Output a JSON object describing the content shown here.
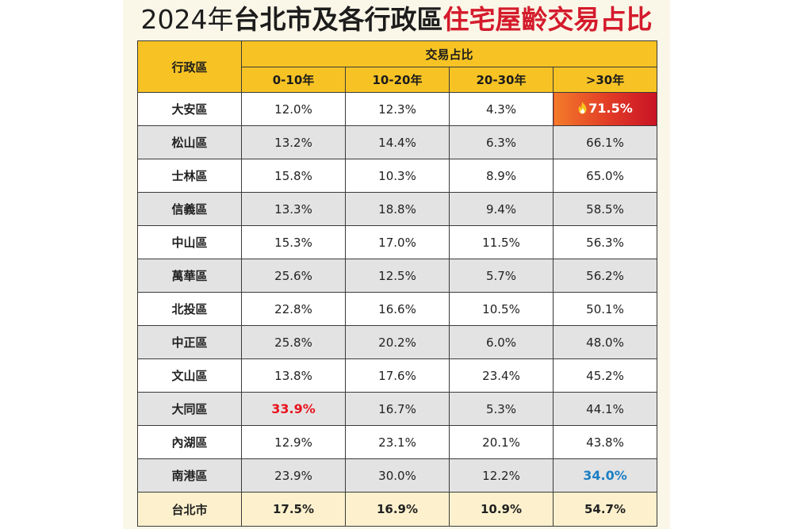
{
  "title": {
    "year_part": "2024年",
    "black_part": "台北市及各行政區",
    "red_part": "住宅屋齡交易占比"
  },
  "chart_data": {
    "type": "table",
    "title": "2024年台北市及各行政區住宅屋齡交易占比",
    "row_header": "行政區",
    "group_header": "交易占比",
    "columns": [
      "0-10年",
      "10-20年",
      "20-30年",
      ">30年"
    ],
    "rows": [
      {
        "district": "大安區",
        "values": [
          "12.0%",
          "12.3%",
          "4.3%",
          "71.5%"
        ]
      },
      {
        "district": "松山區",
        "values": [
          "13.2%",
          "14.4%",
          "6.3%",
          "66.1%"
        ]
      },
      {
        "district": "士林區",
        "values": [
          "15.8%",
          "10.3%",
          "8.9%",
          "65.0%"
        ]
      },
      {
        "district": "信義區",
        "values": [
          "13.3%",
          "18.8%",
          "9.4%",
          "58.5%"
        ]
      },
      {
        "district": "中山區",
        "values": [
          "15.3%",
          "17.0%",
          "11.5%",
          "56.3%"
        ]
      },
      {
        "district": "萬華區",
        "values": [
          "25.6%",
          "12.5%",
          "5.7%",
          "56.2%"
        ]
      },
      {
        "district": "北投區",
        "values": [
          "22.8%",
          "16.6%",
          "10.5%",
          "50.1%"
        ]
      },
      {
        "district": "中正區",
        "values": [
          "25.8%",
          "20.2%",
          "6.0%",
          "48.0%"
        ]
      },
      {
        "district": "文山區",
        "values": [
          "13.8%",
          "17.6%",
          "23.4%",
          "45.2%"
        ]
      },
      {
        "district": "大同區",
        "values": [
          "33.9%",
          "16.7%",
          "5.3%",
          "44.1%"
        ]
      },
      {
        "district": "內湖區",
        "values": [
          "12.9%",
          "23.1%",
          "20.1%",
          "43.8%"
        ]
      },
      {
        "district": "南港區",
        "values": [
          "23.9%",
          "30.0%",
          "12.2%",
          "34.0%"
        ]
      }
    ],
    "total": {
      "district": "台北市",
      "values": [
        "17.5%",
        "16.9%",
        "10.9%",
        "54.7%"
      ]
    },
    "highlights": [
      {
        "row": 0,
        "col": 3,
        "style": "hot"
      },
      {
        "row": 9,
        "col": 0,
        "style": "red"
      },
      {
        "row": 11,
        "col": 3,
        "style": "blue"
      }
    ]
  },
  "icons": {
    "max_value_icon": "flame-icon"
  },
  "colors": {
    "header_yellow": "#f7c324",
    "title_red": "#d41b2c",
    "highlight_red": "#e8141e",
    "highlight_blue": "#1b7fc4",
    "alt_row_gray": "#e3e3e3",
    "total_row_cream": "#fdf1cd"
  }
}
